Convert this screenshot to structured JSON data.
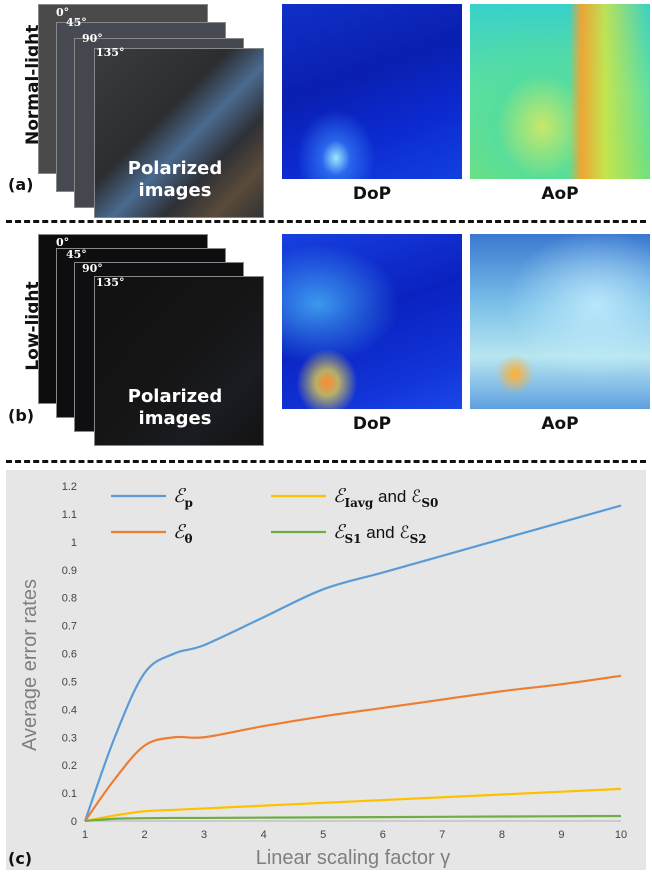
{
  "panel_a": {
    "row_label": "Normal-light",
    "letter": "(a)",
    "angles": [
      "0°",
      "45°",
      "90°",
      "135°"
    ],
    "polarized_label_1": "Polarized",
    "polarized_label_2": "images",
    "dop_label": "DoP",
    "aop_label": "AoP"
  },
  "panel_b": {
    "row_label": "Low-light",
    "letter": "(b)",
    "angles": [
      "0°",
      "45°",
      "90°",
      "135°"
    ],
    "polarized_label_1": "Polarized",
    "polarized_label_2": "images",
    "dop_label": "DoP",
    "aop_label": "AoP"
  },
  "panel_c": {
    "letter": "(c)"
  },
  "chart_data": {
    "type": "line",
    "xlabel": "Linear scaling factor γ",
    "ylabel": "Average error rates",
    "xlim": [
      1,
      10
    ],
    "ylim": [
      0,
      1.2
    ],
    "x_ticks": [
      "1",
      "2",
      "3",
      "4",
      "5",
      "6",
      "7",
      "8",
      "9",
      "10"
    ],
    "y_ticks": [
      "0",
      "0.1",
      "0.2",
      "0.3",
      "0.4",
      "0.5",
      "0.6",
      "0.7",
      "0.8",
      "0.9",
      "1",
      "1.1",
      "1.2"
    ],
    "grid": false,
    "legend_position": "top-left",
    "x": [
      1,
      1.5,
      2,
      2.5,
      3,
      4,
      5,
      6,
      7,
      8,
      9,
      10
    ],
    "series": [
      {
        "name": "ε_p",
        "legend_main": "ℰ",
        "legend_sub": "p",
        "legend_rest": "",
        "color": "#5b9bd5",
        "values": [
          0.0,
          0.3,
          0.53,
          0.6,
          0.63,
          0.73,
          0.83,
          0.89,
          0.95,
          1.01,
          1.07,
          1.13
        ]
      },
      {
        "name": "ε_θ",
        "legend_main": "ℰ",
        "legend_sub": "θ",
        "legend_rest": "",
        "color": "#ed7d31",
        "values": [
          0.0,
          0.15,
          0.27,
          0.3,
          0.3,
          0.34,
          0.375,
          0.405,
          0.435,
          0.465,
          0.49,
          0.52
        ]
      },
      {
        "name": "ε_Iavg and ε_S0",
        "legend_main": "ℰ",
        "legend_sub": "Iavg",
        "legend_rest": " and ℰ",
        "legend_sub2": "S0",
        "color": "#ffc000",
        "values": [
          0.0,
          0.02,
          0.035,
          0.04,
          0.045,
          0.055,
          0.065,
          0.075,
          0.085,
          0.095,
          0.105,
          0.115
        ]
      },
      {
        "name": "ε_S1 and ε_S2",
        "legend_main": "ℰ",
        "legend_sub": "S1",
        "legend_rest": " and ℰ",
        "legend_sub2": "S2",
        "color": "#70ad47",
        "values": [
          0.0,
          0.008,
          0.01,
          0.011,
          0.011,
          0.012,
          0.013,
          0.014,
          0.015,
          0.016,
          0.017,
          0.018
        ]
      }
    ]
  }
}
